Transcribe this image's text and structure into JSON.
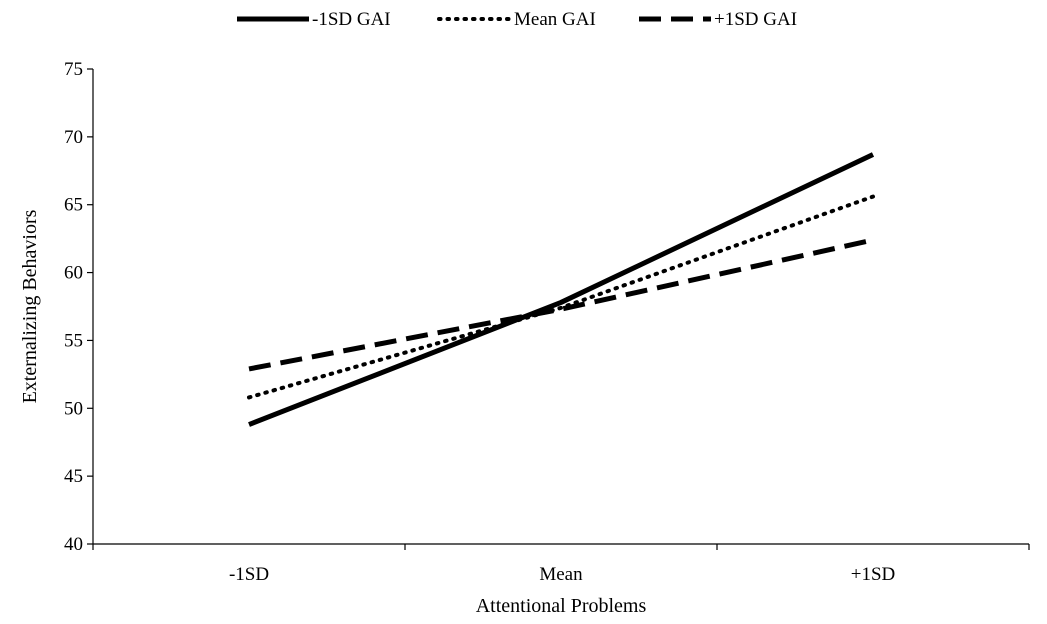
{
  "chart_data": {
    "type": "line",
    "categories": [
      "-1SD",
      "Mean",
      "+1SD"
    ],
    "series": [
      {
        "name": "-1SD GAI",
        "values": [
          48.8,
          57.8,
          68.7
        ],
        "style": "solid"
      },
      {
        "name": "Mean GAI",
        "values": [
          50.8,
          57.4,
          65.6
        ],
        "style": "dotted"
      },
      {
        "name": "+1SD GAI",
        "values": [
          52.9,
          57.3,
          62.4
        ],
        "style": "dashed"
      }
    ],
    "xlabel": "Attentional Problems",
    "ylabel": "Externalizing Behaviors",
    "ylim": [
      40,
      75
    ],
    "yticks": [
      40,
      45,
      50,
      55,
      60,
      65,
      70,
      75
    ],
    "grid": false,
    "legend_position": "top-center",
    "line_color": "#000000"
  }
}
